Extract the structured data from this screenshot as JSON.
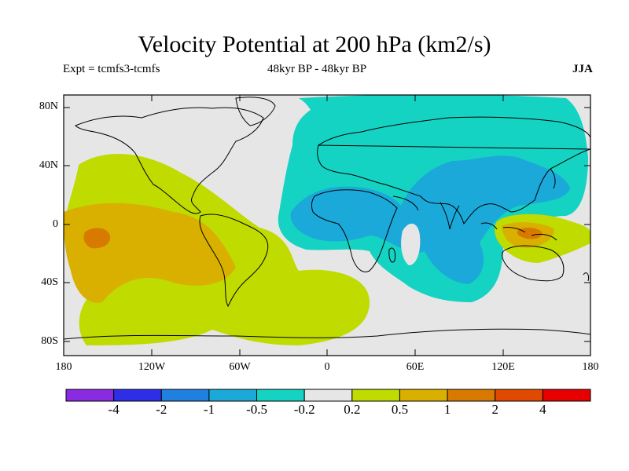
{
  "header": {
    "title": "Velocity Potential at 200 hPa (km2/s)",
    "experiment": "Expt = tcmfs3-tcmfs",
    "period": "48kyr BP - 48kyr BP",
    "season": "JJA"
  },
  "axes": {
    "lat_labels": [
      "80N",
      "40N",
      "0",
      "40S",
      "80S"
    ],
    "lon_labels": [
      "180",
      "120W",
      "60W",
      "0",
      "60E",
      "120E",
      "180"
    ]
  },
  "colorbar": {
    "colors": [
      "#8a2be2",
      "#2e2ee6",
      "#1f80e0",
      "#1aa9d9",
      "#14d3c2",
      "#e6e6e6",
      "#bfdb00",
      "#d9b000",
      "#d97a00",
      "#e04a00",
      "#e60000"
    ],
    "labels": [
      "-4",
      "-2",
      "-1",
      "-0.5",
      "-0.2",
      "0.2",
      "0.5",
      "1",
      "2",
      "4"
    ]
  },
  "map": {
    "background_color": "#e6e6e6",
    "coast_color": "#000000"
  }
}
